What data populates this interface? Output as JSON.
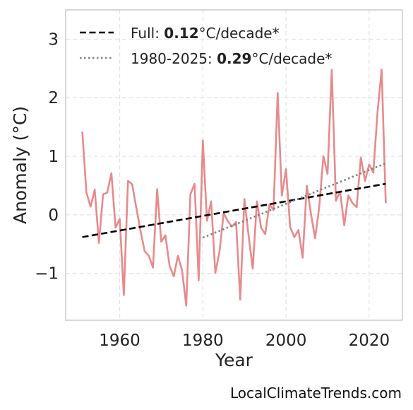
{
  "chart_data": {
    "type": "line",
    "xlabel": "Year",
    "ylabel": "Anomaly (°C)",
    "xlim": [
      1947,
      2028
    ],
    "ylim": [
      -1.8,
      3.5
    ],
    "xticks": [
      1960,
      1980,
      2000,
      2020
    ],
    "yticks": [
      -1,
      0,
      1,
      2,
      3
    ],
    "ytick_labels": [
      "−1",
      "0",
      "1",
      "2",
      "3"
    ],
    "grid": true,
    "legend_position": "top-left",
    "series": [
      {
        "name": "",
        "style": "solid",
        "color": "#e88a8c",
        "x": [
          1951,
          1952,
          1953,
          1954,
          1955,
          1956,
          1957,
          1958,
          1959,
          1960,
          1961,
          1962,
          1963,
          1964,
          1965,
          1966,
          1967,
          1968,
          1969,
          1970,
          1971,
          1972,
          1973,
          1974,
          1975,
          1976,
          1977,
          1978,
          1979,
          1980,
          1981,
          1982,
          1983,
          1984,
          1985,
          1986,
          1987,
          1988,
          1989,
          1990,
          1991,
          1992,
          1993,
          1994,
          1995,
          1996,
          1997,
          1998,
          1999,
          2000,
          2001,
          2002,
          2003,
          2004,
          2005,
          2006,
          2007,
          2008,
          2009,
          2010,
          2011,
          2012,
          2013,
          2014,
          2015,
          2016,
          2017,
          2018,
          2019,
          2020,
          2021,
          2022,
          2023,
          2024
        ],
        "y": [
          1.42,
          0.38,
          0.14,
          0.43,
          -0.48,
          0.35,
          0.38,
          0.71,
          -0.22,
          -0.07,
          -1.37,
          0.58,
          0.52,
          0.12,
          -0.27,
          -0.62,
          -0.7,
          -0.9,
          0.44,
          -0.46,
          -0.35,
          -0.87,
          -1.05,
          -0.7,
          -0.95,
          -1.55,
          0.35,
          0.53,
          -1.12,
          1.27,
          -0.1,
          0.23,
          -0.99,
          -0.63,
          0.03,
          -0.11,
          -0.2,
          -0.12,
          -1.45,
          0.27,
          -0.35,
          -0.92,
          0.23,
          -0.22,
          -0.33,
          0.18,
          0.08,
          2.08,
          0.33,
          0.78,
          -0.21,
          -0.38,
          -0.26,
          -0.73,
          0.5,
          0.02,
          -0.4,
          0.14,
          1.0,
          0.7,
          2.48,
          0.24,
          0.4,
          -0.18,
          0.33,
          0.2,
          0.13,
          0.98,
          0.58,
          0.86,
          0.72,
          1.75,
          2.48,
          0.2
        ]
      },
      {
        "name": "Full",
        "style": "dashed",
        "color": "#000000",
        "x": [
          1951,
          2024
        ],
        "y": [
          -0.38,
          0.53
        ]
      },
      {
        "name": "1980-2025",
        "style": "dotted",
        "color": "#808080",
        "x": [
          1980,
          2024
        ],
        "y": [
          -0.39,
          0.88
        ]
      }
    ],
    "legend": [
      {
        "prefix": "Full: ",
        "value": "0.12",
        "suffix": "°C/decade*",
        "style": "dashed",
        "color": "#000000"
      },
      {
        "prefix": "1980-2025: ",
        "value": "0.29",
        "suffix": "°C/decade*",
        "style": "dotted",
        "color": "#808080"
      }
    ]
  },
  "credit": "LocalClimateTrends.com"
}
